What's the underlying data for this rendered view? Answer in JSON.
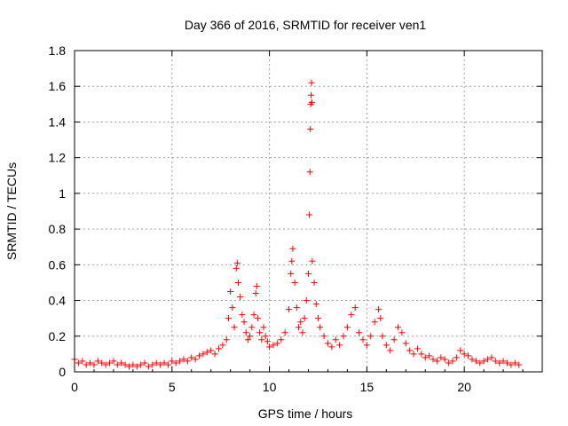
{
  "chart_data": {
    "type": "scatter",
    "title": "Day 366 of 2016, SRMTID for receiver ven1",
    "xlabel": "GPS time / hours",
    "ylabel": "SRMTID / TECUs",
    "xlim": [
      0,
      24
    ],
    "ylim": [
      0,
      1.8
    ],
    "xticks": [
      0,
      5,
      10,
      15,
      20
    ],
    "xtick_labels": [
      "0",
      "5",
      "10",
      "15",
      "20"
    ],
    "yticks": [
      0,
      0.2,
      0.4,
      0.6,
      0.8,
      1.0,
      1.2,
      1.4,
      1.6,
      1.8
    ],
    "ytick_labels": [
      "0",
      "0.2",
      "0.4",
      "0.6",
      "0.8",
      "1",
      "1.2",
      "1.4",
      "1.6",
      "1.8"
    ],
    "grid": true,
    "marker": "+",
    "color": "#ff0000",
    "series": [
      {
        "name": "SRMTID",
        "points": [
          [
            0.0,
            0.07
          ],
          [
            0.2,
            0.05
          ],
          [
            0.4,
            0.06
          ],
          [
            0.6,
            0.04
          ],
          [
            0.8,
            0.05
          ],
          [
            1.0,
            0.04
          ],
          [
            1.2,
            0.06
          ],
          [
            1.4,
            0.05
          ],
          [
            1.6,
            0.04
          ],
          [
            1.8,
            0.05
          ],
          [
            2.0,
            0.06
          ],
          [
            2.2,
            0.04
          ],
          [
            2.4,
            0.05
          ],
          [
            2.6,
            0.04
          ],
          [
            2.8,
            0.03
          ],
          [
            3.0,
            0.04
          ],
          [
            3.2,
            0.03
          ],
          [
            3.4,
            0.04
          ],
          [
            3.6,
            0.05
          ],
          [
            3.8,
            0.03
          ],
          [
            4.0,
            0.04
          ],
          [
            4.2,
            0.05
          ],
          [
            4.4,
            0.04
          ],
          [
            4.6,
            0.05
          ],
          [
            4.8,
            0.04
          ],
          [
            5.0,
            0.06
          ],
          [
            5.2,
            0.05
          ],
          [
            5.4,
            0.06
          ],
          [
            5.6,
            0.07
          ],
          [
            5.8,
            0.06
          ],
          [
            6.0,
            0.08
          ],
          [
            6.2,
            0.07
          ],
          [
            6.4,
            0.09
          ],
          [
            6.6,
            0.1
          ],
          [
            6.8,
            0.11
          ],
          [
            7.0,
            0.12
          ],
          [
            7.2,
            0.1
          ],
          [
            7.4,
            0.13
          ],
          [
            7.6,
            0.15
          ],
          [
            7.8,
            0.18
          ],
          [
            7.9,
            0.3
          ],
          [
            8.0,
            0.45
          ],
          [
            8.1,
            0.36
          ],
          [
            8.2,
            0.25
          ],
          [
            8.3,
            0.58
          ],
          [
            8.35,
            0.61
          ],
          [
            8.4,
            0.5
          ],
          [
            8.5,
            0.42
          ],
          [
            8.6,
            0.32
          ],
          [
            8.7,
            0.28
          ],
          [
            8.8,
            0.22
          ],
          [
            8.9,
            0.18
          ],
          [
            9.0,
            0.2
          ],
          [
            9.1,
            0.25
          ],
          [
            9.2,
            0.32
          ],
          [
            9.3,
            0.44
          ],
          [
            9.35,
            0.48
          ],
          [
            9.4,
            0.3
          ],
          [
            9.5,
            0.22
          ],
          [
            9.6,
            0.18
          ],
          [
            9.7,
            0.25
          ],
          [
            9.8,
            0.2
          ],
          [
            9.9,
            0.17
          ],
          [
            10.0,
            0.14
          ],
          [
            10.2,
            0.15
          ],
          [
            10.4,
            0.16
          ],
          [
            10.6,
            0.18
          ],
          [
            10.8,
            0.22
          ],
          [
            11.0,
            0.35
          ],
          [
            11.1,
            0.55
          ],
          [
            11.15,
            0.62
          ],
          [
            11.2,
            0.69
          ],
          [
            11.3,
            0.5
          ],
          [
            11.4,
            0.36
          ],
          [
            11.5,
            0.25
          ],
          [
            11.6,
            0.28
          ],
          [
            11.7,
            0.22
          ],
          [
            11.8,
            0.3
          ],
          [
            11.9,
            0.4
          ],
          [
            12.0,
            0.55
          ],
          [
            12.05,
            0.88
          ],
          [
            12.08,
            1.12
          ],
          [
            12.1,
            1.36
          ],
          [
            12.12,
            1.5
          ],
          [
            12.14,
            1.55
          ],
          [
            12.16,
            1.62
          ],
          [
            12.18,
            1.51
          ],
          [
            12.2,
            0.62
          ],
          [
            12.3,
            0.5
          ],
          [
            12.4,
            0.38
          ],
          [
            12.5,
            0.3
          ],
          [
            12.6,
            0.25
          ],
          [
            12.8,
            0.2
          ],
          [
            13.0,
            0.16
          ],
          [
            13.2,
            0.14
          ],
          [
            13.4,
            0.18
          ],
          [
            13.6,
            0.15
          ],
          [
            13.8,
            0.2
          ],
          [
            14.0,
            0.25
          ],
          [
            14.2,
            0.32
          ],
          [
            14.4,
            0.36
          ],
          [
            14.6,
            0.22
          ],
          [
            14.8,
            0.18
          ],
          [
            15.0,
            0.15
          ],
          [
            15.2,
            0.2
          ],
          [
            15.4,
            0.28
          ],
          [
            15.6,
            0.35
          ],
          [
            15.7,
            0.3
          ],
          [
            15.8,
            0.2
          ],
          [
            16.0,
            0.15
          ],
          [
            16.2,
            0.12
          ],
          [
            16.4,
            0.18
          ],
          [
            16.6,
            0.25
          ],
          [
            16.8,
            0.22
          ],
          [
            17.0,
            0.16
          ],
          [
            17.2,
            0.12
          ],
          [
            17.4,
            0.1
          ],
          [
            17.6,
            0.13
          ],
          [
            17.8,
            0.1
          ],
          [
            18.0,
            0.08
          ],
          [
            18.2,
            0.09
          ],
          [
            18.4,
            0.07
          ],
          [
            18.6,
            0.06
          ],
          [
            18.8,
            0.08
          ],
          [
            19.0,
            0.07
          ],
          [
            19.2,
            0.05
          ],
          [
            19.4,
            0.06
          ],
          [
            19.6,
            0.08
          ],
          [
            19.8,
            0.12
          ],
          [
            20.0,
            0.1
          ],
          [
            20.2,
            0.09
          ],
          [
            20.4,
            0.07
          ],
          [
            20.6,
            0.06
          ],
          [
            20.8,
            0.05
          ],
          [
            21.0,
            0.06
          ],
          [
            21.2,
            0.07
          ],
          [
            21.4,
            0.08
          ],
          [
            21.6,
            0.06
          ],
          [
            21.8,
            0.05
          ],
          [
            22.0,
            0.06
          ],
          [
            22.2,
            0.05
          ],
          [
            22.4,
            0.04
          ],
          [
            22.6,
            0.05
          ],
          [
            22.8,
            0.04
          ]
        ]
      }
    ]
  }
}
